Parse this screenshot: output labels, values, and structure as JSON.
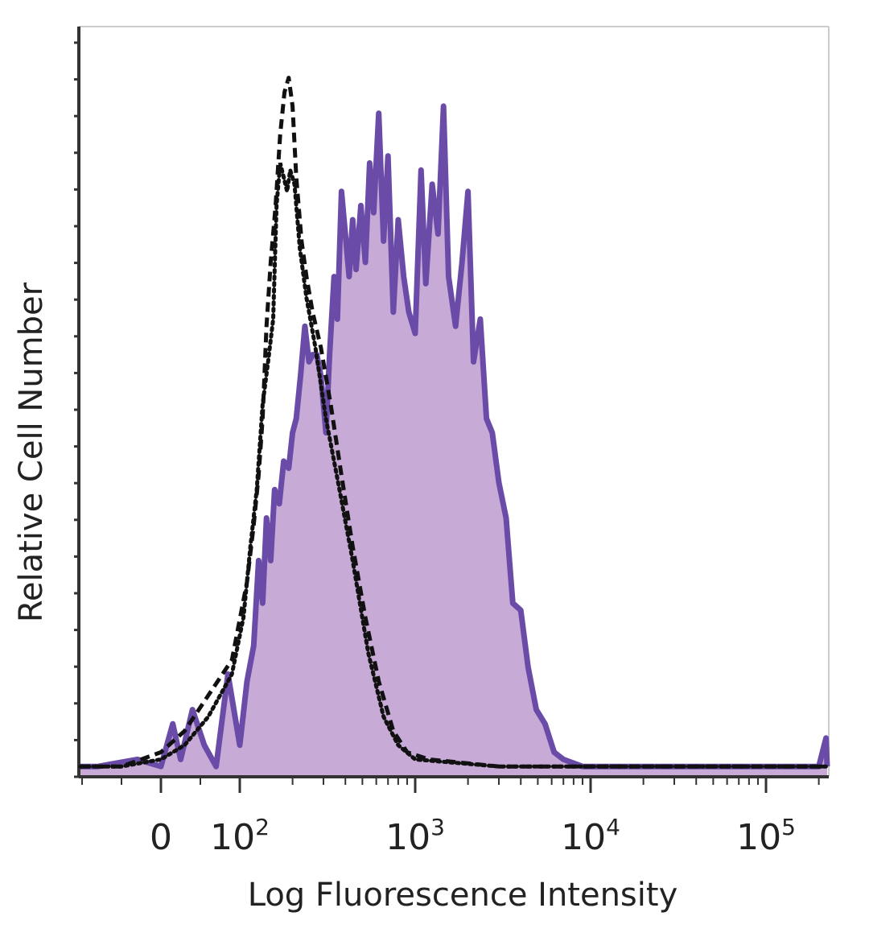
{
  "chart_data": {
    "type": "area",
    "xlabel": "Log Fluorescence Intensity",
    "ylabel": "Relative Cell Number",
    "x_scale": "biexponential",
    "x_ticks": [
      {
        "value": 0,
        "base": "0",
        "exp": ""
      },
      {
        "value": 100,
        "base": "10",
        "exp": "2"
      },
      {
        "value": 1000,
        "base": "10",
        "exp": "3"
      },
      {
        "value": 10000,
        "base": "10",
        "exp": "4"
      },
      {
        "value": 100000,
        "base": "10",
        "exp": "5"
      }
    ],
    "xlim": [
      -150,
      250000
    ],
    "ylim": [
      0,
      100
    ],
    "grid": false,
    "colors": {
      "stained_line": "#6a4ba8",
      "stained_fill": "#c7abd6",
      "control_line": "#111111",
      "axis": "#333333"
    },
    "series": [
      {
        "style": "filled-solid",
        "points": [
          [
            -150,
            1
          ],
          [
            -80,
            1
          ],
          [
            -30,
            2
          ],
          [
            0,
            1
          ],
          [
            15,
            7
          ],
          [
            25,
            2
          ],
          [
            40,
            9
          ],
          [
            55,
            4
          ],
          [
            70,
            1
          ],
          [
            85,
            14
          ],
          [
            100,
            4
          ],
          [
            110,
            13
          ],
          [
            120,
            18
          ],
          [
            128,
            30
          ],
          [
            135,
            24
          ],
          [
            142,
            36
          ],
          [
            150,
            30
          ],
          [
            158,
            40
          ],
          [
            168,
            38
          ],
          [
            178,
            44
          ],
          [
            190,
            43
          ],
          [
            200,
            48
          ],
          [
            210,
            50
          ],
          [
            222,
            56
          ],
          [
            235,
            63
          ],
          [
            248,
            58
          ],
          [
            260,
            59
          ],
          [
            275,
            59
          ],
          [
            290,
            56
          ],
          [
            300,
            52
          ],
          [
            310,
            48
          ],
          [
            325,
            59
          ],
          [
            345,
            70
          ],
          [
            360,
            64
          ],
          [
            380,
            82
          ],
          [
            400,
            76
          ],
          [
            420,
            70
          ],
          [
            440,
            78
          ],
          [
            460,
            71
          ],
          [
            490,
            80
          ],
          [
            520,
            72
          ],
          [
            550,
            86
          ],
          [
            580,
            79
          ],
          [
            620,
            93
          ],
          [
            660,
            75
          ],
          [
            700,
            87
          ],
          [
            750,
            65
          ],
          [
            800,
            78
          ],
          [
            860,
            70
          ],
          [
            920,
            65
          ],
          [
            1000,
            62
          ],
          [
            1080,
            85
          ],
          [
            1150,
            69
          ],
          [
            1250,
            83
          ],
          [
            1350,
            76
          ],
          [
            1450,
            94
          ],
          [
            1550,
            70
          ],
          [
            1700,
            63
          ],
          [
            1850,
            72
          ],
          [
            2000,
            82
          ],
          [
            2150,
            58
          ],
          [
            2350,
            64
          ],
          [
            2550,
            50
          ],
          [
            2750,
            48
          ],
          [
            3000,
            41
          ],
          [
            3300,
            36
          ],
          [
            3600,
            24
          ],
          [
            4000,
            23
          ],
          [
            4400,
            15
          ],
          [
            4900,
            9
          ],
          [
            5500,
            7
          ],
          [
            6200,
            3
          ],
          [
            7000,
            2
          ],
          [
            9000,
            1
          ],
          [
            15000,
            1
          ],
          [
            40000,
            1
          ],
          [
            100000,
            1
          ],
          [
            200000,
            1
          ],
          [
            220000,
            5
          ],
          [
            240000,
            1
          ]
        ]
      },
      {
        "style": "dashed",
        "points": [
          [
            -150,
            1
          ],
          [
            -50,
            1
          ],
          [
            0,
            3
          ],
          [
            30,
            6
          ],
          [
            60,
            11
          ],
          [
            90,
            16
          ],
          [
            110,
            27
          ],
          [
            120,
            35
          ],
          [
            128,
            42
          ],
          [
            135,
            50
          ],
          [
            142,
            63
          ],
          [
            150,
            72
          ],
          [
            160,
            80
          ],
          [
            170,
            90
          ],
          [
            180,
            96
          ],
          [
            190,
            98
          ],
          [
            200,
            94
          ],
          [
            210,
            84
          ],
          [
            225,
            75
          ],
          [
            240,
            70
          ],
          [
            260,
            65
          ],
          [
            290,
            60
          ],
          [
            330,
            52
          ],
          [
            380,
            42
          ],
          [
            440,
            32
          ],
          [
            520,
            22
          ],
          [
            620,
            13
          ],
          [
            750,
            6
          ],
          [
            900,
            3
          ],
          [
            1200,
            2
          ],
          [
            3000,
            1
          ],
          [
            240000,
            1
          ]
        ]
      },
      {
        "style": "dotted",
        "points": [
          [
            -150,
            1
          ],
          [
            -50,
            1
          ],
          [
            0,
            2
          ],
          [
            30,
            4
          ],
          [
            60,
            8
          ],
          [
            90,
            14
          ],
          [
            105,
            22
          ],
          [
            115,
            32
          ],
          [
            125,
            40
          ],
          [
            135,
            52
          ],
          [
            145,
            58
          ],
          [
            155,
            64
          ],
          [
            162,
            80
          ],
          [
            170,
            86
          ],
          [
            178,
            84
          ],
          [
            186,
            82
          ],
          [
            194,
            85
          ],
          [
            205,
            83
          ],
          [
            220,
            74
          ],
          [
            240,
            67
          ],
          [
            270,
            60
          ],
          [
            310,
            50
          ],
          [
            370,
            40
          ],
          [
            440,
            30
          ],
          [
            540,
            17
          ],
          [
            660,
            8
          ],
          [
            800,
            4
          ],
          [
            1000,
            2
          ],
          [
            3000,
            1
          ],
          [
            240000,
            1
          ]
        ]
      }
    ]
  }
}
